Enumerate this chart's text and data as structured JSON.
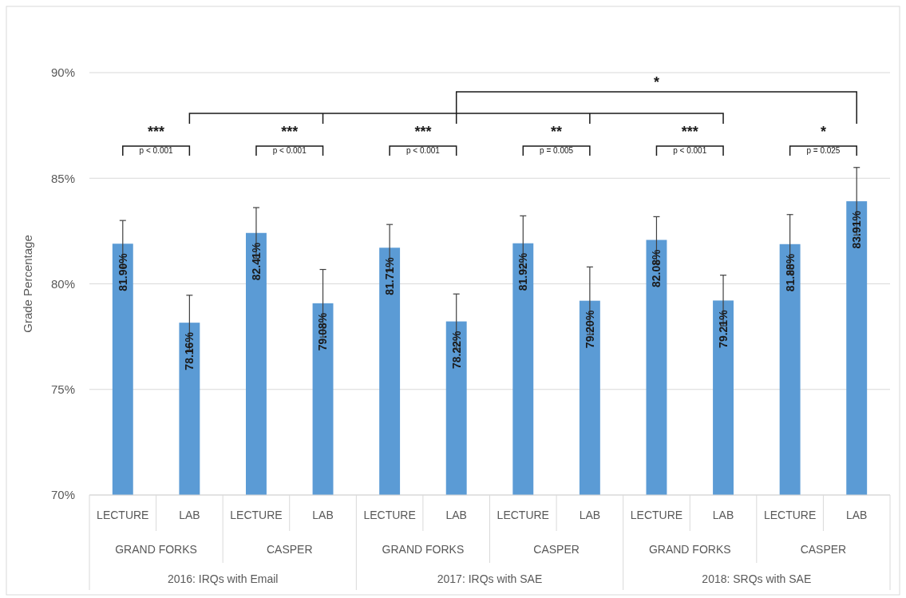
{
  "chart_data": {
    "type": "bar",
    "ylabel": "Grade Percentage",
    "categories": [
      "LECTURE",
      "LAB",
      "LECTURE",
      "LAB",
      "LECTURE",
      "LAB",
      "LECTURE",
      "LAB",
      "LECTURE",
      "LAB",
      "LECTURE",
      "LAB"
    ],
    "values": [
      81.9,
      78.16,
      82.41,
      79.08,
      81.71,
      78.22,
      81.92,
      79.2,
      82.08,
      79.21,
      81.88,
      83.91
    ],
    "value_labels": [
      "81.90%",
      "78.16%",
      "82.41%",
      "79.08%",
      "81.71%",
      "78.22%",
      "81.92%",
      "79.20%",
      "82.08%",
      "79.21%",
      "81.88%",
      "83.91%"
    ],
    "errors": [
      1.1,
      1.3,
      1.2,
      1.6,
      1.1,
      1.3,
      1.3,
      1.6,
      1.1,
      1.2,
      1.4,
      1.6
    ],
    "color": "#5b9bd5",
    "ylim": [
      70,
      90
    ],
    "yticks": [
      {
        "value": 70,
        "label": "70%"
      },
      {
        "value": 75,
        "label": "75%"
      },
      {
        "value": 80,
        "label": "80%"
      },
      {
        "value": 85,
        "label": "85%"
      },
      {
        "value": 90,
        "label": "90%"
      }
    ],
    "grid": "y",
    "annotations": [
      "GRAND FORKS",
      "CASPER",
      "GRAND FORKS",
      "CASPER",
      "GRAND FORKS",
      "CASPER",
      "2016: IRQs with Email",
      "2017: IRQs with SAE",
      "2018: SRQs with SAE",
      "***",
      "p < 0.001",
      "***",
      "p < 0.001",
      "***",
      "p < 0.001",
      "**",
      "p = 0.005",
      "***",
      "p < 0.001",
      "*",
      "p = 0.025",
      "*"
    ]
  }
}
